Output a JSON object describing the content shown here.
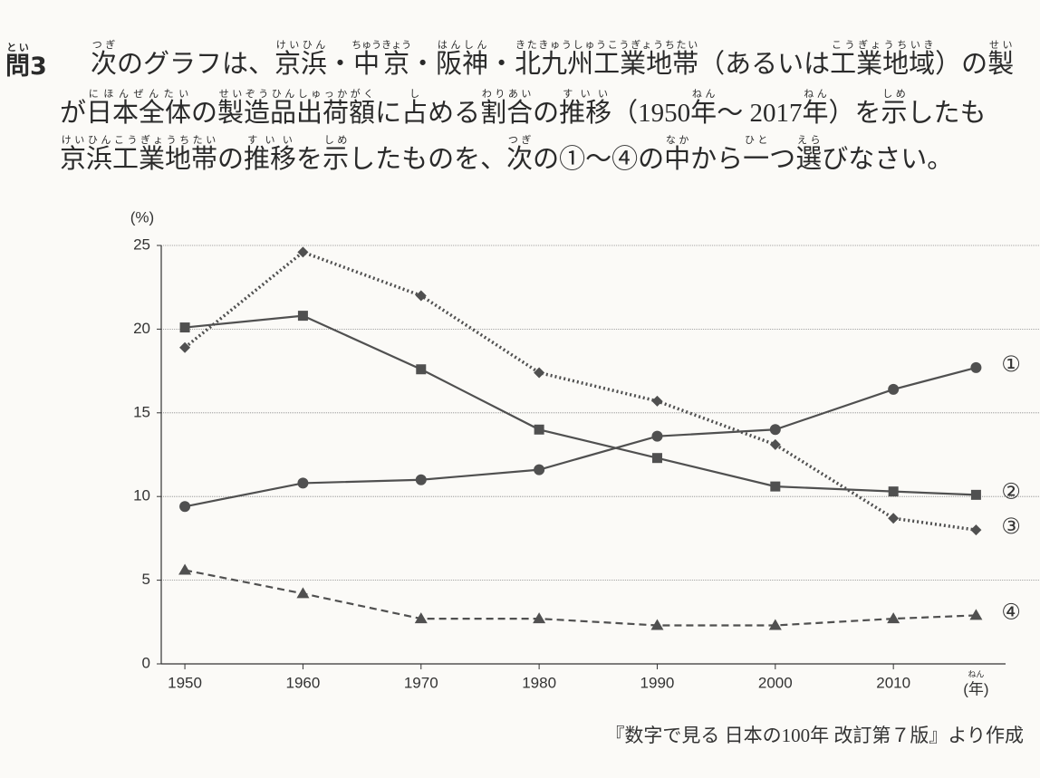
{
  "question": {
    "label": [
      {
        "text": "問",
        "ruby": "とい"
      },
      "3"
    ],
    "lines": [
      [
        "",
        {
          "text": "次",
          "ruby": "つぎ"
        },
        "のグラフは、",
        {
          "text": "京浜",
          "ruby": "けいひん"
        },
        "・",
        {
          "text": "中京",
          "ruby": "ちゅうきょう"
        },
        "・",
        {
          "text": "阪神",
          "ruby": "はんしん"
        },
        "・",
        {
          "text": "北九州工業地帯",
          "ruby": "きたきゅうしゅうこうぎょうちたい"
        },
        "（あるいは",
        {
          "text": "工業地域",
          "ruby": "こうぎょうちいき"
        },
        "）の",
        {
          "text": "製",
          "ruby": "せい"
        }
      ],
      [
        "が",
        {
          "text": "日本全体",
          "ruby": "にほんぜんたい"
        },
        "の",
        {
          "text": "製造品出荷額",
          "ruby": "せいぞうひんしゅっかがく"
        },
        "に",
        {
          "text": "占",
          "ruby": "し"
        },
        "める",
        {
          "text": "割合",
          "ruby": "わりあい"
        },
        "の",
        {
          "text": "推移",
          "ruby": "すいい"
        },
        "（1950",
        {
          "text": "年",
          "ruby": "ねん"
        },
        "～ 2017",
        {
          "text": "年",
          "ruby": "ねん"
        },
        "）を",
        {
          "text": "示",
          "ruby": "しめ"
        },
        "したも"
      ],
      [
        {
          "text": "京浜工業地帯",
          "ruby": "けいひんこうぎょうちたい"
        },
        "の",
        {
          "text": "推移",
          "ruby": "すいい"
        },
        "を",
        {
          "text": "示",
          "ruby": "しめ"
        },
        "したものを、",
        {
          "text": "次",
          "ruby": "つぎ"
        },
        "の①～④の",
        {
          "text": "中",
          "ruby": "なか"
        },
        "から",
        {
          "text": "一",
          "ruby": "ひと"
        },
        "つ",
        {
          "text": "選",
          "ruby": "えら"
        },
        "びなさい。"
      ]
    ]
  },
  "chart_data": {
    "type": "line",
    "y_unit": "(%)",
    "x_unit": {
      "text": "(年)",
      "ruby": "ねん"
    },
    "source": "『数字で見る 日本の100年 改訂第７版』より作成",
    "x": [
      1950,
      1960,
      1970,
      1980,
      1990,
      2000,
      2010,
      2017
    ],
    "xlim": [
      1948,
      2019.5
    ],
    "xticks": [
      1950,
      1960,
      1970,
      1980,
      1990,
      2000,
      2010
    ],
    "ylim": [
      0,
      25
    ],
    "yticks": [
      0,
      5,
      10,
      15,
      20,
      25
    ],
    "grid": true,
    "series": [
      {
        "name": "①",
        "color": "#505050",
        "marker": "circle",
        "dash": "solid",
        "values": [
          9.4,
          10.8,
          11.0,
          11.6,
          13.6,
          14.0,
          16.4,
          17.7
        ]
      },
      {
        "name": "②",
        "color": "#505050",
        "marker": "square",
        "dash": "solid",
        "values": [
          20.1,
          20.8,
          17.6,
          14.0,
          12.3,
          10.6,
          10.3,
          10.1
        ]
      },
      {
        "name": "③",
        "color": "#505050",
        "marker": "diamond",
        "dash": "dotted",
        "values": [
          18.9,
          24.6,
          22.0,
          17.4,
          15.7,
          13.1,
          8.7,
          8.0
        ]
      },
      {
        "name": "④",
        "color": "#505050",
        "marker": "triangle",
        "dash": "dashed",
        "values": [
          5.6,
          4.2,
          2.7,
          2.7,
          2.3,
          2.3,
          2.7,
          2.9
        ]
      }
    ]
  }
}
